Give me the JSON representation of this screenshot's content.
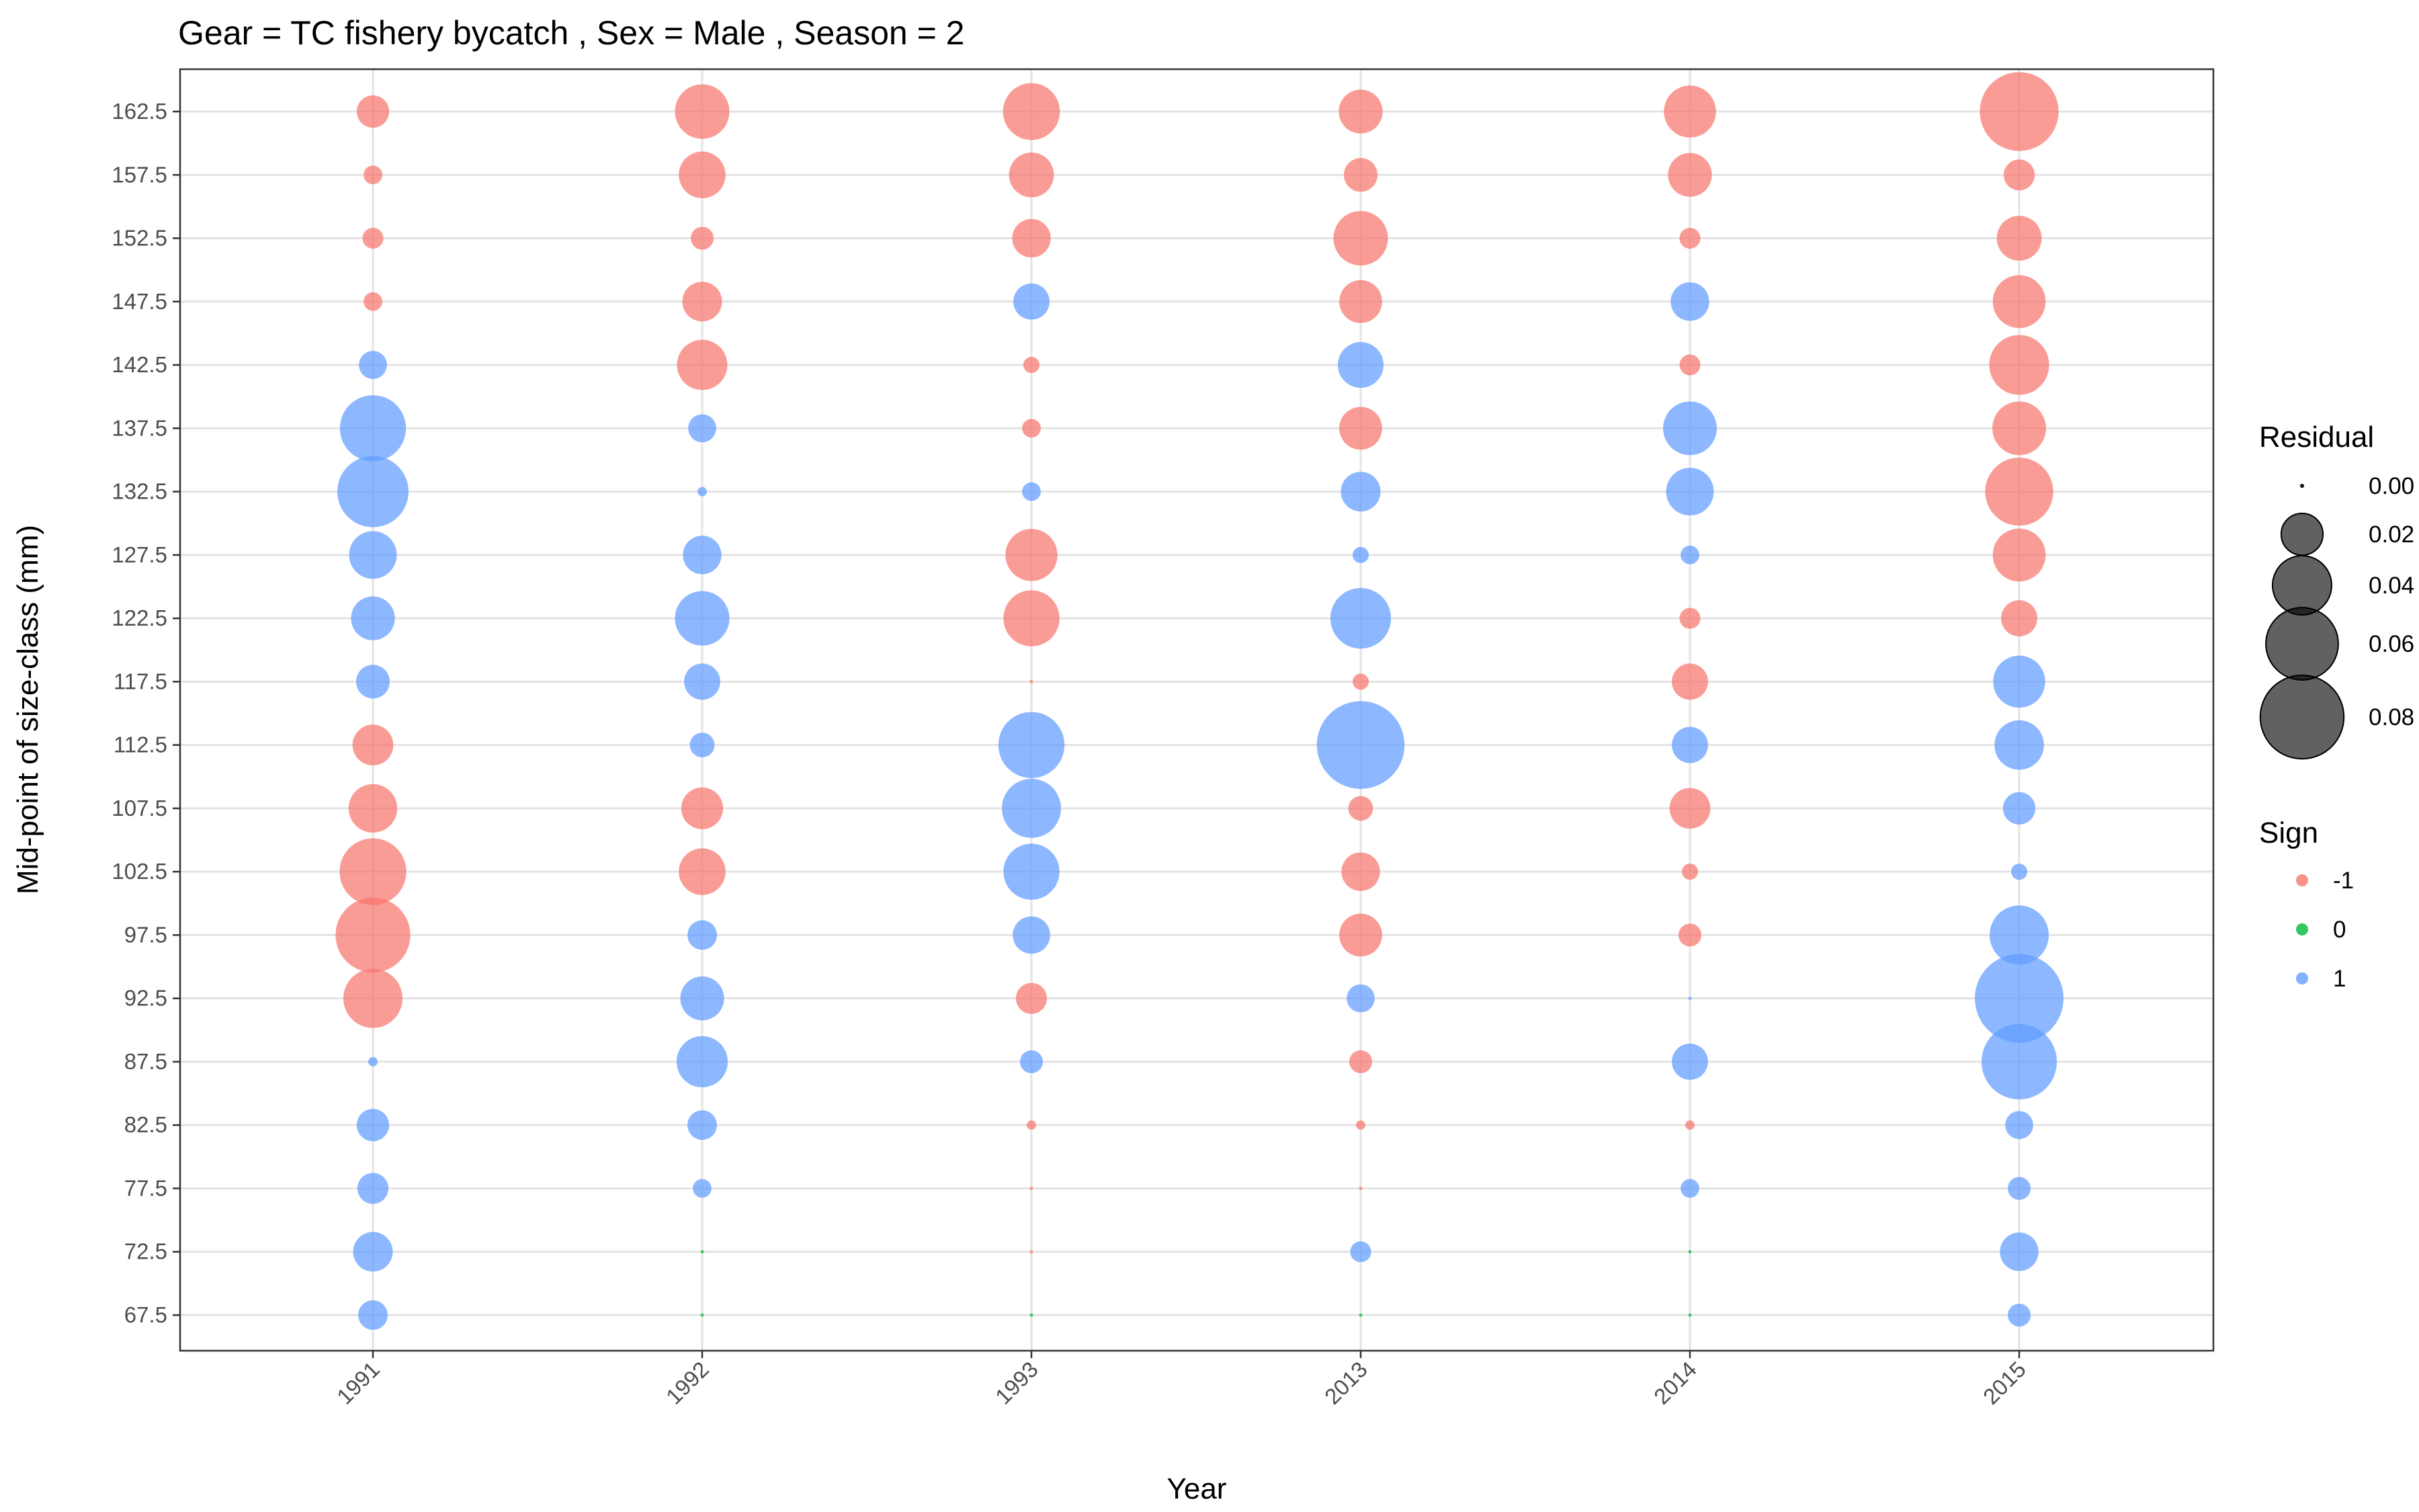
{
  "chart_data": {
    "type": "scatter",
    "title": "Gear = TC fishery bycatch , Sex = Male , Season = 2",
    "xlabel": "Year",
    "ylabel": "Mid-point of size-class (mm)",
    "categories": [
      "1991",
      "1992",
      "1993",
      "2013",
      "2014",
      "2015"
    ],
    "y_ticks": [
      "67.5",
      "72.5",
      "77.5",
      "82.5",
      "87.5",
      "92.5",
      "97.5",
      "102.5",
      "107.5",
      "112.5",
      "117.5",
      "122.5",
      "127.5",
      "132.5",
      "137.5",
      "142.5",
      "147.5",
      "152.5",
      "157.5",
      "162.5"
    ],
    "ylim": [
      66,
      164
    ],
    "grid": true,
    "size_legend": {
      "title": "Residual",
      "labels": [
        "0.00",
        "0.02",
        "0.04",
        "0.06",
        "0.08"
      ],
      "values": [
        0.0,
        0.02,
        0.04,
        0.06,
        0.08
      ]
    },
    "color_legend": {
      "title": "Sign",
      "entries": [
        {
          "label": "-1",
          "color": "#F8766D"
        },
        {
          "label": "0",
          "color": "#00BA38"
        },
        {
          "label": "1",
          "color": "#619CFF"
        }
      ]
    },
    "size_range": [
      0,
      0.09
    ],
    "series": [
      {
        "name": "1991",
        "y": [
          67.5,
          72.5,
          77.5,
          82.5,
          87.5,
          92.5,
          97.5,
          102.5,
          107.5,
          112.5,
          117.5,
          122.5,
          127.5,
          132.5,
          137.5,
          142.5,
          147.5,
          152.5,
          157.5,
          162.5
        ],
        "residual": [
          0.01,
          0.018,
          0.011,
          0.012,
          0.001,
          0.04,
          0.064,
          0.051,
          0.027,
          0.019,
          0.013,
          0.022,
          0.026,
          0.058,
          0.05,
          0.009,
          0.004,
          0.005,
          0.004,
          0.012
        ],
        "sign": [
          1,
          1,
          1,
          1,
          1,
          -1,
          -1,
          -1,
          -1,
          -1,
          1,
          1,
          1,
          1,
          1,
          1,
          -1,
          -1,
          -1,
          -1
        ]
      },
      {
        "name": "1992",
        "y": [
          67.5,
          72.5,
          77.5,
          82.5,
          87.5,
          92.5,
          97.5,
          102.5,
          107.5,
          112.5,
          117.5,
          122.5,
          127.5,
          132.5,
          137.5,
          142.5,
          147.5,
          152.5,
          157.5,
          162.5
        ],
        "residual": [
          0.0,
          0.0,
          0.004,
          0.01,
          0.03,
          0.022,
          0.01,
          0.025,
          0.02,
          0.007,
          0.015,
          0.034,
          0.017,
          0.001,
          0.009,
          0.029,
          0.018,
          0.006,
          0.025,
          0.034
        ],
        "sign": [
          0,
          0,
          1,
          1,
          1,
          1,
          1,
          -1,
          -1,
          1,
          1,
          1,
          1,
          1,
          1,
          -1,
          -1,
          -1,
          -1,
          -1
        ],
        "colors": [
          "0",
          "0",
          "1",
          "1",
          "1",
          "1",
          "1",
          "-1",
          "-1",
          "1",
          "1",
          "1",
          "1",
          "1",
          "1",
          "-1",
          "-1",
          "-1",
          "-1",
          "-1"
        ]
      },
      {
        "name": "1993",
        "y": [
          67.5,
          72.5,
          77.5,
          82.5,
          87.5,
          92.5,
          97.5,
          102.5,
          107.5,
          112.5,
          117.5,
          122.5,
          127.5,
          132.5,
          137.5,
          142.5,
          147.5,
          152.5,
          157.5,
          162.5
        ],
        "residual": [
          0.0,
          0.0,
          0.0,
          0.001,
          0.006,
          0.011,
          0.016,
          0.036,
          0.04,
          0.05,
          0.0,
          0.036,
          0.031,
          0.004,
          0.004,
          0.003,
          0.015,
          0.017,
          0.023,
          0.037
        ],
        "sign": [
          0,
          -1,
          -1,
          -1,
          1,
          -1,
          1,
          1,
          1,
          1,
          -1,
          -1,
          -1,
          1,
          -1,
          -1,
          1,
          -1,
          -1,
          -1
        ]
      },
      {
        "name": "2013",
        "y": [
          67.5,
          72.5,
          77.5,
          82.5,
          87.5,
          92.5,
          97.5,
          102.5,
          107.5,
          112.5,
          117.5,
          122.5,
          127.5,
          132.5,
          137.5,
          142.5,
          147.5,
          152.5,
          157.5,
          162.5
        ],
        "residual": [
          0.0,
          0.005,
          0.0,
          0.001,
          0.006,
          0.009,
          0.021,
          0.017,
          0.007,
          0.088,
          0.003,
          0.042,
          0.003,
          0.018,
          0.021,
          0.024,
          0.021,
          0.034,
          0.013,
          0.022
        ],
        "sign": [
          0,
          1,
          -1,
          -1,
          -1,
          1,
          -1,
          -1,
          -1,
          1,
          -1,
          1,
          1,
          1,
          -1,
          1,
          -1,
          -1,
          -1,
          -1
        ]
      },
      {
        "name": "2014",
        "y": [
          67.5,
          72.5,
          77.5,
          82.5,
          87.5,
          92.5,
          97.5,
          102.5,
          107.5,
          112.5,
          117.5,
          122.5,
          127.5,
          132.5,
          137.5,
          142.5,
          147.5,
          152.5,
          157.5,
          162.5
        ],
        "residual": [
          0.0,
          0.0,
          0.004,
          0.001,
          0.015,
          0.0,
          0.006,
          0.003,
          0.019,
          0.015,
          0.015,
          0.005,
          0.004,
          0.026,
          0.033,
          0.005,
          0.017,
          0.005,
          0.022,
          0.031
        ],
        "sign": [
          0,
          0,
          1,
          -1,
          1,
          1,
          -1,
          -1,
          -1,
          1,
          -1,
          -1,
          1,
          1,
          1,
          -1,
          1,
          -1,
          -1,
          -1
        ]
      },
      {
        "name": "2015",
        "y": [
          67.5,
          72.5,
          77.5,
          82.5,
          87.5,
          92.5,
          97.5,
          102.5,
          107.5,
          112.5,
          117.5,
          122.5,
          127.5,
          132.5,
          137.5,
          142.5,
          147.5,
          152.5,
          157.5,
          162.5
        ],
        "residual": [
          0.006,
          0.017,
          0.006,
          0.009,
          0.065,
          0.09,
          0.04,
          0.003,
          0.012,
          0.028,
          0.031,
          0.015,
          0.032,
          0.053,
          0.033,
          0.041,
          0.032,
          0.023,
          0.011,
          0.071
        ],
        "sign": [
          1,
          1,
          1,
          1,
          1,
          1,
          1,
          1,
          1,
          1,
          1,
          -1,
          -1,
          -1,
          -1,
          -1,
          -1,
          -1,
          -1,
          -1
        ]
      }
    ]
  }
}
